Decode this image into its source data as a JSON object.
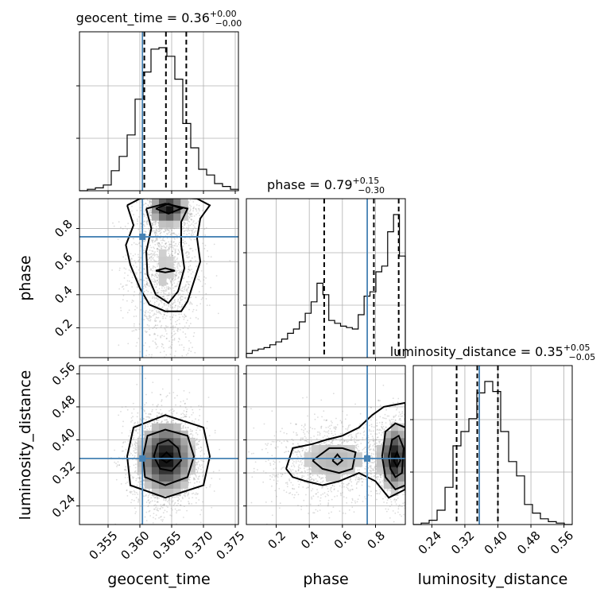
{
  "chart_data": {
    "type": "corner",
    "parameters": [
      {
        "name": "geocent_time",
        "label": "geocent_time",
        "title": "geocent_time = 0.36",
        "title_sup": "+0.00",
        "title_sub": "−0.00",
        "range": [
          0.3505,
          0.3755
        ],
        "ticks": [
          "0.355",
          "0.360",
          "0.365",
          "0.370",
          "0.375"
        ],
        "tick_values": [
          0.355,
          0.36,
          0.365,
          0.37,
          0.375
        ],
        "quantiles": [
          0.3607,
          0.3641,
          0.3673
        ],
        "truth": 0.3604,
        "hist": [
          0,
          0.01,
          0.02,
          0.04,
          0.14,
          0.24,
          0.39,
          0.64,
          0.83,
          0.99,
          1.0,
          0.94,
          0.78,
          0.47,
          0.3,
          0.15,
          0.11,
          0.05,
          0.03,
          0.01
        ]
      },
      {
        "name": "phase",
        "label": "phase",
        "title": "phase = 0.79",
        "title_sup": "+0.15",
        "title_sub": "−0.30",
        "range": [
          0.02,
          0.98
        ],
        "ticks": [
          "0.2",
          "0.4",
          "0.6",
          "0.8"
        ],
        "tick_values": [
          0.2,
          0.4,
          0.6,
          0.8
        ],
        "quantiles": [
          0.49,
          0.79,
          0.94
        ],
        "truth": 0.75,
        "hist": [
          0.03,
          0.05,
          0.06,
          0.07,
          0.09,
          0.11,
          0.13,
          0.17,
          0.2,
          0.25,
          0.31,
          0.39,
          0.52,
          0.44,
          0.26,
          0.24,
          0.22,
          0.21,
          0.2,
          0.3,
          0.43,
          0.46,
          0.6,
          0.64,
          0.88,
          1.0,
          0.71
        ]
      },
      {
        "name": "luminosity_distance",
        "label": "luminosity_distance",
        "title": "luminosity_distance = 0.35",
        "title_sup": "+0.05",
        "title_sub": "−0.05",
        "range": [
          0.195,
          0.58
        ],
        "ticks": [
          "0.24",
          "0.32",
          "0.40",
          "0.48",
          "0.56"
        ],
        "tick_values": [
          0.24,
          0.32,
          0.4,
          0.48,
          0.56
        ],
        "quantiles": [
          0.3,
          0.35,
          0.4
        ],
        "truth": 0.355,
        "hist": [
          0,
          0.01,
          0.03,
          0.1,
          0.26,
          0.55,
          0.65,
          0.74,
          0.92,
          1.0,
          0.93,
          0.65,
          0.44,
          0.34,
          0.14,
          0.08,
          0.04,
          0.02,
          0.01,
          0
        ]
      }
    ],
    "pairs": [
      {
        "x": "geocent_time",
        "y": "phase",
        "modes": [
          {
            "x": 0.3645,
            "y": 0.92,
            "sx": 0.0016,
            "sy": 0.05,
            "w": 0.42
          },
          {
            "x": 0.3638,
            "y": 0.55,
            "sx": 0.0024,
            "sy": 0.22,
            "w": 0.58
          }
        ],
        "contours": [
          [
            [
              0.358,
              0.94
            ],
            [
              0.36,
              0.98
            ],
            [
              0.364,
              0.99
            ],
            [
              0.369,
              0.98
            ],
            [
              0.371,
              0.94
            ],
            [
              0.3695,
              0.86
            ],
            [
              0.369,
              0.74
            ],
            [
              0.3695,
              0.6
            ],
            [
              0.3685,
              0.48
            ],
            [
              0.3675,
              0.36
            ],
            [
              0.3665,
              0.3
            ],
            [
              0.364,
              0.3
            ],
            [
              0.3615,
              0.34
            ],
            [
              0.36,
              0.44
            ],
            [
              0.3585,
              0.58
            ],
            [
              0.3578,
              0.7
            ],
            [
              0.359,
              0.82
            ],
            [
              0.358,
              0.94
            ]
          ],
          [
            [
              0.361,
              0.92
            ],
            [
              0.364,
              0.95
            ],
            [
              0.3675,
              0.92
            ],
            [
              0.3665,
              0.84
            ],
            [
              0.3665,
              0.7
            ],
            [
              0.367,
              0.56
            ],
            [
              0.366,
              0.42
            ],
            [
              0.3645,
              0.35
            ],
            [
              0.3625,
              0.4
            ],
            [
              0.3612,
              0.52
            ],
            [
              0.361,
              0.66
            ],
            [
              0.3618,
              0.8
            ],
            [
              0.361,
              0.92
            ]
          ],
          [
            [
              0.3625,
              0.92
            ],
            [
              0.3645,
              0.95
            ],
            [
              0.3665,
              0.92
            ],
            [
              0.3645,
              0.89
            ],
            [
              0.3625,
              0.92
            ]
          ],
          [
            [
              0.3625,
              0.545
            ],
            [
              0.364,
              0.56
            ],
            [
              0.3655,
              0.545
            ],
            [
              0.364,
              0.535
            ],
            [
              0.3625,
              0.545
            ]
          ]
        ]
      },
      {
        "x": "geocent_time",
        "y": "luminosity_distance",
        "modes": [
          {
            "x": 0.3641,
            "y": 0.356,
            "sx": 0.0024,
            "sy": 0.05,
            "w": 1.0
          }
        ],
        "contours": [
          [
            [
              0.358,
              0.36
            ],
            [
              0.359,
              0.43
            ],
            [
              0.364,
              0.46
            ],
            [
              0.37,
              0.43
            ],
            [
              0.371,
              0.36
            ],
            [
              0.37,
              0.29
            ],
            [
              0.364,
              0.26
            ],
            [
              0.3585,
              0.29
            ],
            [
              0.358,
              0.36
            ]
          ],
          [
            [
              0.3605,
              0.36
            ],
            [
              0.3612,
              0.41
            ],
            [
              0.364,
              0.425
            ],
            [
              0.3675,
              0.41
            ],
            [
              0.3685,
              0.36
            ],
            [
              0.3675,
              0.31
            ],
            [
              0.364,
              0.29
            ],
            [
              0.3608,
              0.31
            ],
            [
              0.3605,
              0.36
            ]
          ],
          [
            [
              0.3622,
              0.36
            ],
            [
              0.3628,
              0.39
            ],
            [
              0.3645,
              0.4
            ],
            [
              0.366,
              0.38
            ],
            [
              0.3665,
              0.35
            ],
            [
              0.365,
              0.325
            ],
            [
              0.3632,
              0.33
            ],
            [
              0.3622,
              0.36
            ]
          ],
          [
            [
              0.3632,
              0.355
            ],
            [
              0.3642,
              0.37
            ],
            [
              0.3652,
              0.355
            ],
            [
              0.3642,
              0.345
            ],
            [
              0.3632,
              0.355
            ]
          ]
        ]
      },
      {
        "x": "phase",
        "y": "luminosity_distance",
        "modes": [
          {
            "x": 0.92,
            "y": 0.357,
            "sx": 0.05,
            "sy": 0.045,
            "w": 0.5
          },
          {
            "x": 0.55,
            "y": 0.35,
            "sx": 0.17,
            "sy": 0.045,
            "w": 0.5
          }
        ],
        "contours": [
          [
            [
              0.26,
              0.33
            ],
            [
              0.3,
              0.38
            ],
            [
              0.42,
              0.39
            ],
            [
              0.5,
              0.4
            ],
            [
              0.6,
              0.41
            ],
            [
              0.7,
              0.43
            ],
            [
              0.78,
              0.46
            ],
            [
              0.85,
              0.48
            ],
            [
              0.98,
              0.49
            ],
            [
              0.98,
              0.28
            ],
            [
              0.88,
              0.26
            ],
            [
              0.8,
              0.3
            ],
            [
              0.7,
              0.32
            ],
            [
              0.58,
              0.3
            ],
            [
              0.48,
              0.29
            ],
            [
              0.38,
              0.3
            ],
            [
              0.3,
              0.31
            ],
            [
              0.26,
              0.33
            ]
          ],
          [
            [
              0.42,
              0.35
            ],
            [
              0.52,
              0.38
            ],
            [
              0.6,
              0.38
            ],
            [
              0.68,
              0.37
            ],
            [
              0.66,
              0.33
            ],
            [
              0.58,
              0.32
            ],
            [
              0.48,
              0.33
            ],
            [
              0.42,
              0.35
            ]
          ],
          [
            [
              0.84,
              0.36
            ],
            [
              0.86,
              0.42
            ],
            [
              0.92,
              0.44
            ],
            [
              0.98,
              0.43
            ],
            [
              0.98,
              0.29
            ],
            [
              0.92,
              0.28
            ],
            [
              0.86,
              0.31
            ],
            [
              0.84,
              0.36
            ]
          ],
          [
            [
              0.88,
              0.36
            ],
            [
              0.9,
              0.4
            ],
            [
              0.94,
              0.41
            ],
            [
              0.97,
              0.38
            ],
            [
              0.96,
              0.32
            ],
            [
              0.92,
              0.31
            ],
            [
              0.89,
              0.33
            ],
            [
              0.88,
              0.36
            ]
          ],
          [
            [
              0.54,
              0.35
            ],
            [
              0.57,
              0.365
            ],
            [
              0.6,
              0.35
            ],
            [
              0.57,
              0.34
            ],
            [
              0.54,
              0.35
            ]
          ],
          [
            [
              0.91,
              0.35
            ],
            [
              0.93,
              0.37
            ],
            [
              0.95,
              0.35
            ],
            [
              0.93,
              0.335
            ],
            [
              0.91,
              0.35
            ]
          ]
        ]
      }
    ],
    "truth_color": "#4682b4",
    "grid": true
  }
}
